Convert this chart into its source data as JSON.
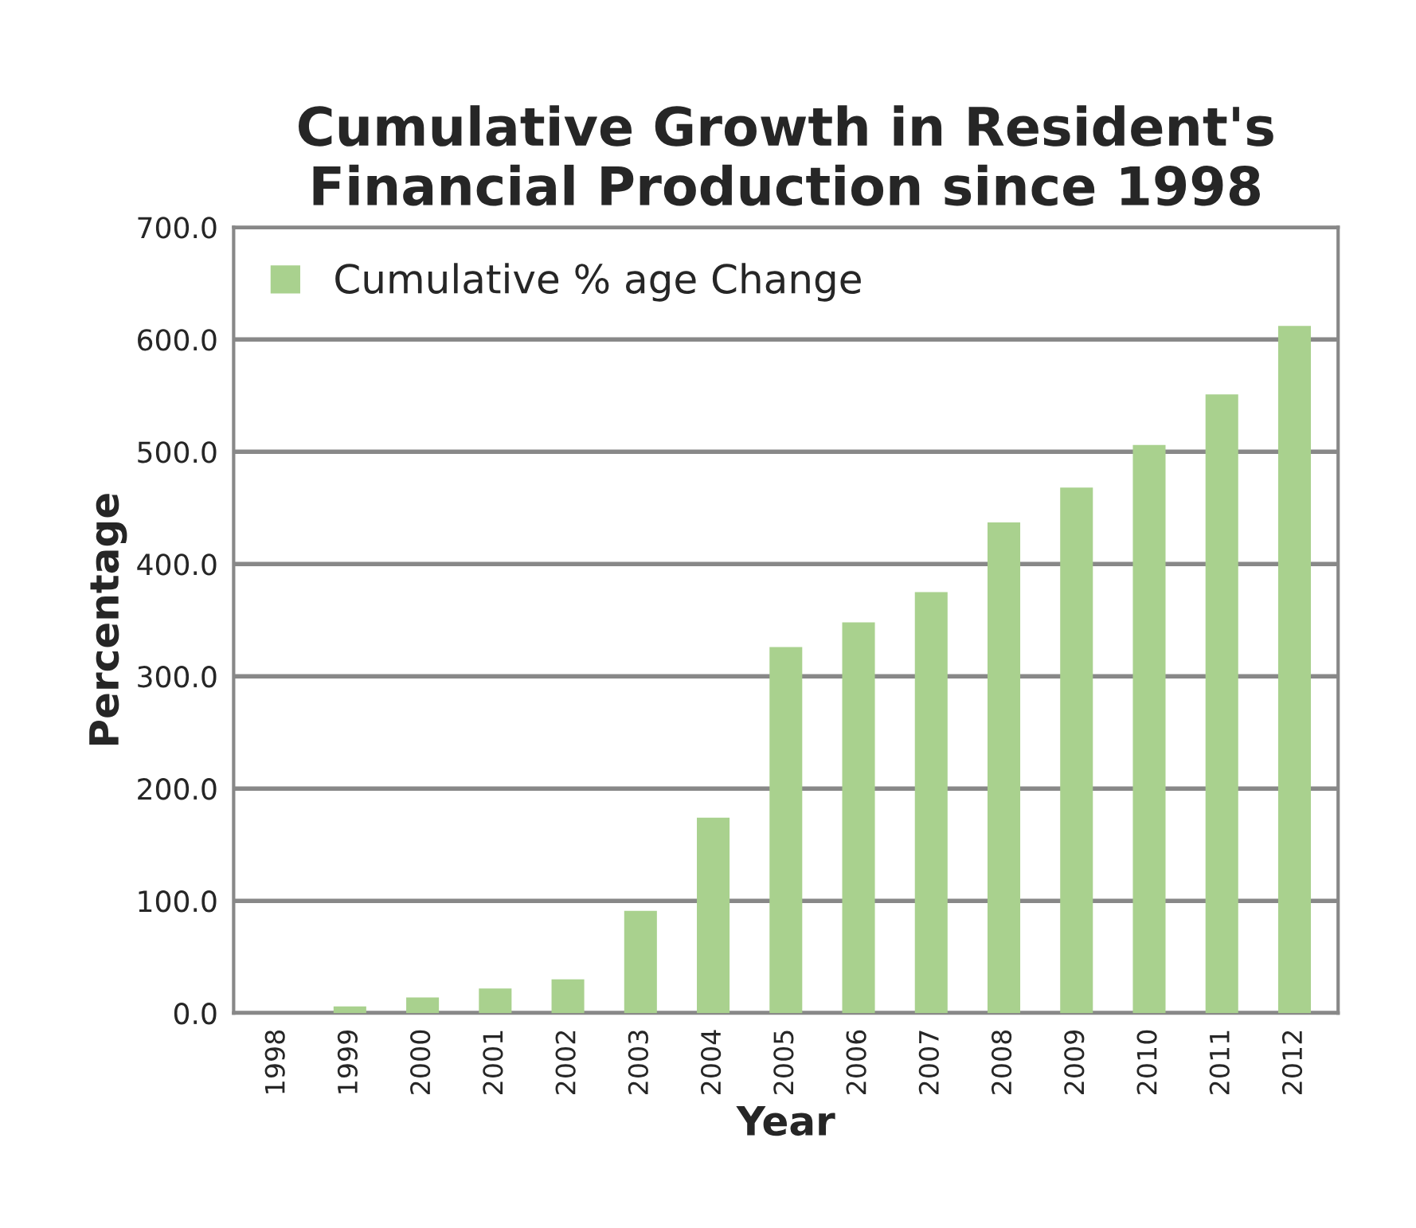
{
  "chart_data": {
    "type": "bar",
    "title": "Cumulative Growth in Resident's\nFinancial Production since 1998",
    "xlabel": "Year",
    "ylabel": "Percentage",
    "categories": [
      "1998",
      "1999",
      "2000",
      "2001",
      "2002",
      "2003",
      "2004",
      "2005",
      "2006",
      "2007",
      "2008",
      "2009",
      "2010",
      "2011",
      "2012"
    ],
    "series": [
      {
        "name": "Cumulative % age Change",
        "color": "#a9d18e",
        "values": [
          0,
          6,
          14,
          22,
          30,
          91,
          174,
          326,
          348,
          375,
          437,
          468,
          506,
          551,
          612
        ]
      }
    ],
    "ylim": [
      0,
      700
    ],
    "yticks": [
      {
        "value": 0,
        "label": "0.0"
      },
      {
        "value": 100,
        "label": "100.0"
      },
      {
        "value": 200,
        "label": "200.0"
      },
      {
        "value": 300,
        "label": "300.0"
      },
      {
        "value": 400,
        "label": "400.0"
      },
      {
        "value": 500,
        "label": "500.0"
      },
      {
        "value": 600,
        "label": "600.0"
      },
      {
        "value": 700,
        "label": "700.0"
      }
    ],
    "grid": "y",
    "legend": "top left"
  }
}
